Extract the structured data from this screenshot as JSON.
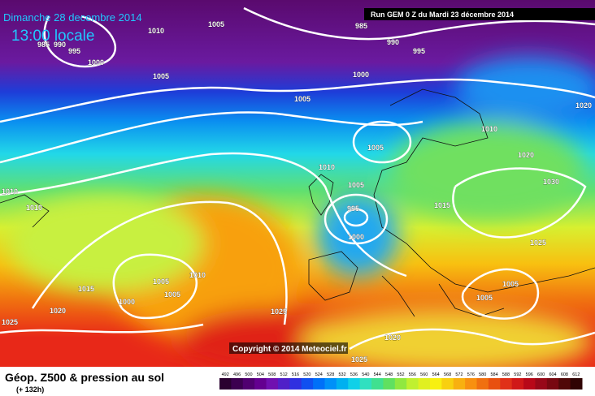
{
  "header": {
    "date": "Dimanche 28 decembre 2014",
    "time": "13:00 locale",
    "run": "Run GEM 0 Z du Mardi 23 décembre 2014"
  },
  "copyright": "Copyright © 2014 Meteociel.fr",
  "footer": {
    "title": "Géop. Z500 & pression au sol",
    "lead": "(+ 132h)"
  },
  "colorbar": {
    "ticks": [
      492,
      496,
      500,
      504,
      508,
      512,
      516,
      520,
      524,
      528,
      532,
      536,
      540,
      544,
      548,
      552,
      556,
      560,
      564,
      568,
      572,
      576,
      580,
      584,
      588,
      592,
      596,
      600,
      604,
      608,
      612
    ]
  },
  "isobar_labels": [
    "985",
    "990",
    "995",
    "1000",
    "1010",
    "1005",
    "1005",
    "1005",
    "1000",
    "985",
    "990",
    "995",
    "1020",
    "1010",
    "1005",
    "1020",
    "1010",
    "1005",
    "1030",
    "1015",
    "995",
    "1000",
    "1025",
    "1010",
    "1010",
    "1015",
    "1005",
    "1005",
    "1010",
    "1000",
    "1020",
    "1025",
    "1025",
    "1020",
    "1025",
    "1005",
    "1005"
  ]
}
